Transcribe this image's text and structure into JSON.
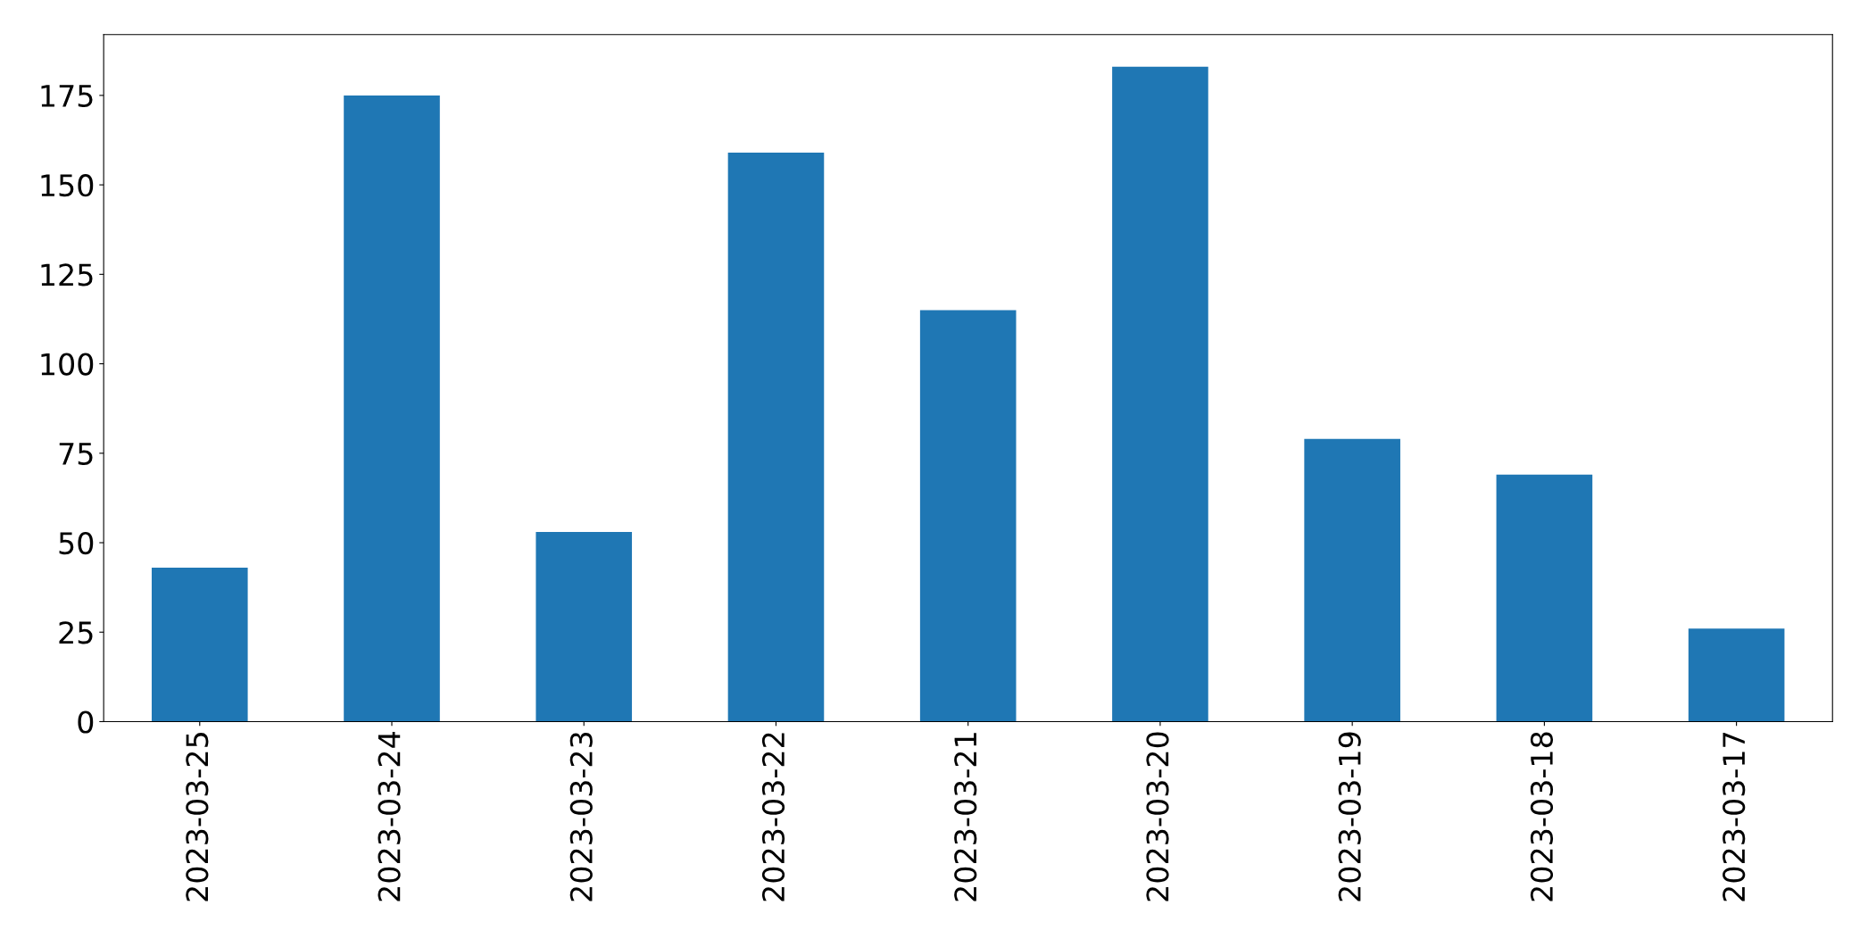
{
  "chart_data": {
    "type": "bar",
    "categories": [
      "2023-03-25",
      "2023-03-24",
      "2023-03-23",
      "2023-03-22",
      "2023-03-21",
      "2023-03-20",
      "2023-03-19",
      "2023-03-18",
      "2023-03-17"
    ],
    "values": [
      43,
      175,
      53,
      159,
      115,
      183,
      79,
      69,
      26
    ],
    "color": "#1f77b4",
    "ylim": [
      0,
      192
    ],
    "yticks": [
      0,
      25,
      50,
      75,
      100,
      125,
      150,
      175
    ],
    "grid": false
  }
}
